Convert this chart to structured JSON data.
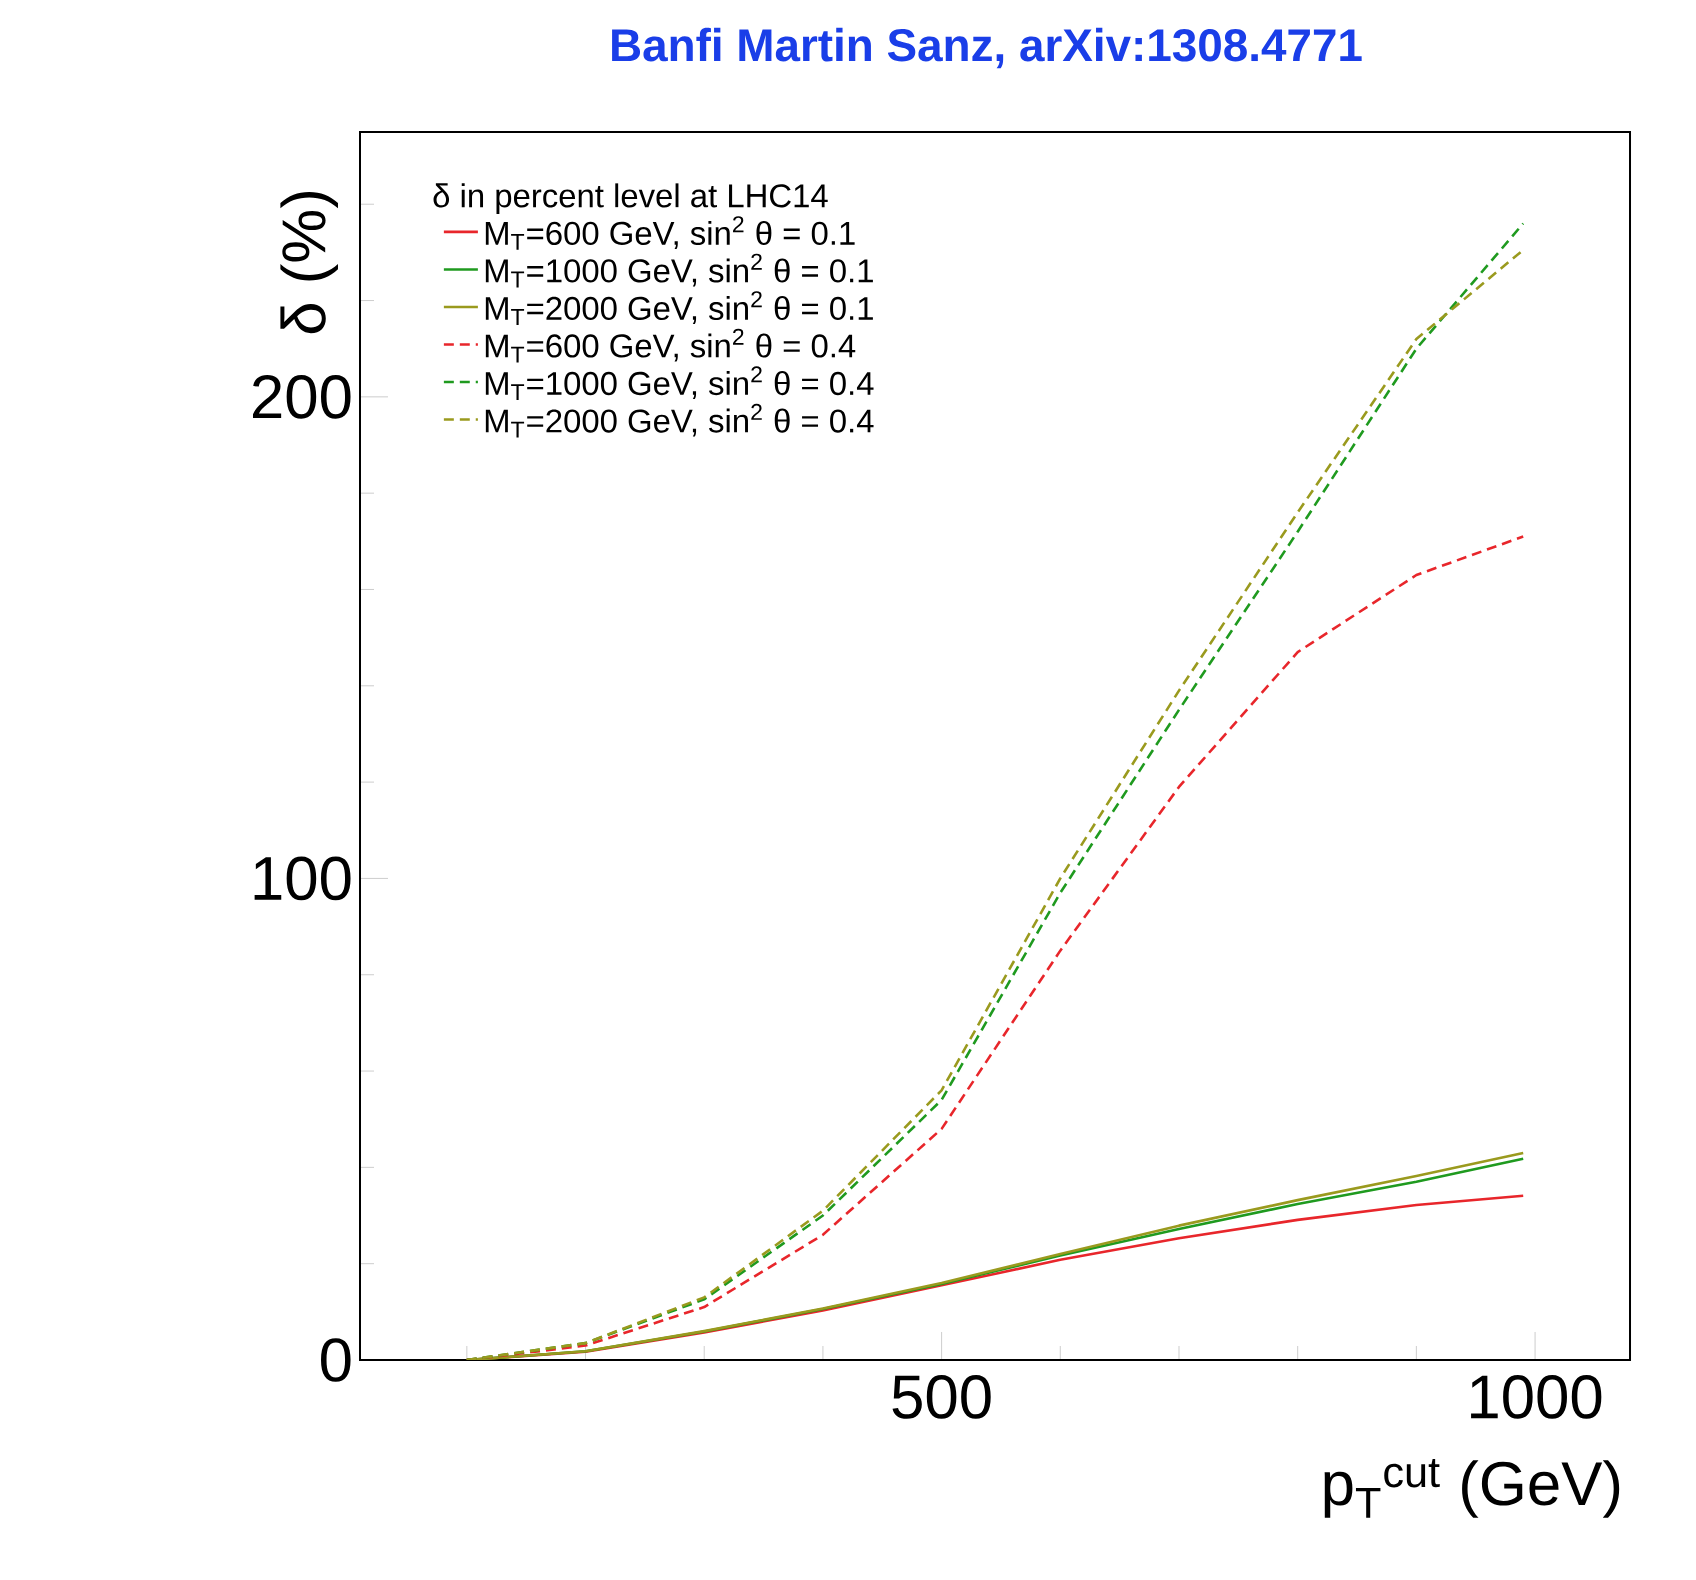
{
  "chart_data": {
    "type": "line",
    "title": "Banfi Martin Sanz, arXiv:1308.4771",
    "xlabel": "p$_{T}$$^{cut}$ (GeV)",
    "ylabel": "δ (%)",
    "legend_title": "δ in percent level at LHC14",
    "x": [
      100,
      200,
      300,
      400,
      500,
      600,
      700,
      800,
      900,
      990
    ],
    "series": [
      {
        "name": "M$_{T}$=600 GeV, sin$^{2}$ θ = 0.1",
        "color": "#e8262b",
        "line_style": "solid",
        "values": [
          0,
          1.7,
          5.7,
          10.3,
          15.5,
          20.8,
          25.3,
          29.1,
          32.2,
          34.1
        ]
      },
      {
        "name": "M$_{T}$=1000 GeV, sin$^{2}$ θ = 0.1",
        "color": "#1f9a1f",
        "line_style": "solid",
        "values": [
          0,
          1.8,
          5.9,
          10.6,
          15.8,
          21.7,
          27.2,
          32.4,
          37,
          41.8
        ]
      },
      {
        "name": "M$_{T}$=2000 GeV,  sin$^{2}$ θ = 0.1",
        "color": "#9a9a1e",
        "line_style": "solid",
        "values": [
          0,
          1.8,
          6,
          10.7,
          16,
          22,
          27.9,
          33.2,
          38.2,
          43
        ]
      },
      {
        "name": "M$_{T}$=600 GeV,  sin$^{2}$ θ = 0.4",
        "color": "#e8262b",
        "line_style": "dashed",
        "values": [
          0,
          3,
          11,
          26,
          48,
          85,
          119,
          147,
          163,
          171
        ]
      },
      {
        "name": "M$_{T}$=1000 GeV, sin$^{2}$ θ = 0.4",
        "color": "#1f9a1f",
        "line_style": "dashed",
        "values": [
          0,
          3.5,
          12.6,
          30,
          54,
          97,
          135,
          172,
          210,
          236
        ]
      },
      {
        "name": "M$_{T}$=2000 GeV, sin$^{2}$ θ = 0.4",
        "color": "#9a9a1e",
        "line_style": "dashed",
        "values": [
          0,
          3.5,
          13,
          31,
          56,
          100,
          139,
          176,
          212,
          230.5
        ]
      }
    ],
    "xlim": [
      10,
      1080
    ],
    "ylim": [
      0,
      255
    ],
    "xticks": [
      {
        "value": 100,
        "label": null
      },
      {
        "value": 200,
        "label": null
      },
      {
        "value": 300,
        "label": null
      },
      {
        "value": 400,
        "label": null
      },
      500,
      {
        "value": 600,
        "label": null
      },
      {
        "value": 700,
        "label": null
      },
      {
        "value": 800,
        "label": null
      },
      {
        "value": 900,
        "label": null
      },
      1000
    ],
    "yticks": [
      0,
      {
        "value": 20,
        "label": null
      },
      {
        "value": 40,
        "label": null
      },
      {
        "value": 60,
        "label": null
      },
      {
        "value": 80,
        "label": null
      },
      100,
      {
        "value": 120,
        "label": null
      },
      {
        "value": 140,
        "label": null
      },
      {
        "value": 160,
        "label": null
      },
      {
        "value": 180,
        "label": null
      },
      200,
      {
        "value": 220,
        "label": null
      },
      {
        "value": 240,
        "label": null
      }
    ],
    "grid": false,
    "legend": "top left",
    "marker": "none"
  }
}
